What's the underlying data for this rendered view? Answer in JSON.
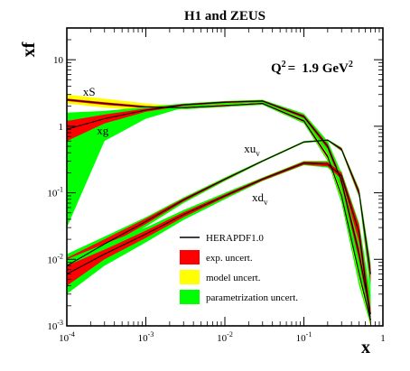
{
  "chart_data": {
    "type": "line",
    "title": "H1 and ZEUS",
    "annotation": {
      "q2_label": "Q",
      "q2_exp": "2",
      "q2_eq": "=",
      "q2_value": "1.9 GeV",
      "q2_unit_exp": "2"
    },
    "xlabel": "x",
    "ylabel": "xf",
    "xscale": "log",
    "yscale": "log",
    "xlim": [
      0.0001,
      1
    ],
    "ylim": [
      0.001,
      30
    ],
    "x_ticks": [
      {
        "value": 0.0001,
        "base": "10",
        "exp": "-4"
      },
      {
        "value": 0.001,
        "base": "10",
        "exp": "-3"
      },
      {
        "value": 0.01,
        "base": "10",
        "exp": "-2"
      },
      {
        "value": 0.1,
        "base": "10",
        "exp": "-1"
      },
      {
        "value": 1,
        "base": "1",
        "exp": ""
      }
    ],
    "y_ticks": [
      {
        "value": 0.001,
        "base": "10",
        "exp": "-3"
      },
      {
        "value": 0.01,
        "base": "10",
        "exp": "-2"
      },
      {
        "value": 0.1,
        "base": "10",
        "exp": "-1"
      },
      {
        "value": 1,
        "base": "1",
        "exp": ""
      },
      {
        "value": 10,
        "base": "10",
        "exp": ""
      }
    ],
    "legend": {
      "placement": "lower-center",
      "entries": [
        {
          "label": "HERAPDF1.0",
          "kind": "line",
          "color": "#000000"
        },
        {
          "label": "exp. uncert.",
          "kind": "box",
          "color": "#ff0000"
        },
        {
          "label": "model uncert.",
          "kind": "box",
          "color": "#ffff00"
        },
        {
          "label": "parametrization uncert.",
          "kind": "box",
          "color": "#00ff00"
        }
      ]
    },
    "colors": {
      "central": "#000000",
      "exp": "#ff0000",
      "model": "#ffff00",
      "param": "#00ff00"
    },
    "x": [
      0.0001,
      0.0003,
      0.001,
      0.003,
      0.01,
      0.03,
      0.1,
      0.2,
      0.3,
      0.5,
      0.7
    ],
    "series": [
      {
        "name": "xS",
        "label_main": "xS",
        "label_sub": "",
        "label_at": {
          "x": 0.00016,
          "y": 2.9
        },
        "y": [
          2.5,
          2.2,
          1.95,
          1.9,
          2.05,
          2.2,
          1.2,
          0.35,
          0.09,
          0.006,
          0.0012
        ],
        "param_lo": [
          2.3,
          2.0,
          1.8,
          1.8,
          1.95,
          2.1,
          1.1,
          0.3,
          0.07,
          0.004,
          0.001
        ],
        "param_hi": [
          2.8,
          2.4,
          2.1,
          2.0,
          2.15,
          2.3,
          1.3,
          0.42,
          0.12,
          0.009,
          0.002
        ],
        "model_lo": [
          2.2,
          1.9,
          1.75,
          1.85,
          2.0,
          2.15,
          1.15,
          0.32,
          0.08,
          0.005,
          0.001
        ],
        "model_hi": [
          3.0,
          2.6,
          2.2,
          2.0,
          2.12,
          2.26,
          1.25,
          0.38,
          0.1,
          0.007,
          0.0015
        ],
        "exp_lo": [
          2.4,
          2.1,
          1.88,
          1.86,
          2.0,
          2.16,
          1.16,
          0.33,
          0.085,
          0.0055,
          0.0011
        ],
        "exp_hi": [
          2.6,
          2.3,
          2.02,
          1.94,
          2.1,
          2.24,
          1.24,
          0.37,
          0.095,
          0.0065,
          0.0013
        ]
      },
      {
        "name": "xg",
        "label_main": "xg",
        "label_sub": "",
        "label_at": {
          "x": 0.00024,
          "y": 0.75
        },
        "y": [
          0.9,
          1.3,
          1.75,
          2.1,
          2.3,
          2.4,
          1.4,
          0.5,
          0.15,
          0.012,
          0.0015
        ],
        "param_lo": [
          0.03,
          0.6,
          1.3,
          1.9,
          2.15,
          2.25,
          1.25,
          0.42,
          0.1,
          0.006,
          0.001
        ],
        "param_hi": [
          1.6,
          1.7,
          1.95,
          2.2,
          2.4,
          2.5,
          1.55,
          0.6,
          0.2,
          0.02,
          0.003
        ],
        "model_lo": [
          0.75,
          1.2,
          1.7,
          2.05,
          2.25,
          2.35,
          1.35,
          0.47,
          0.13,
          0.01,
          0.0013
        ],
        "model_hi": [
          1.0,
          1.38,
          1.8,
          2.12,
          2.33,
          2.43,
          1.45,
          0.53,
          0.17,
          0.014,
          0.0018
        ],
        "exp_lo": [
          0.6,
          1.1,
          1.65,
          2.03,
          2.24,
          2.34,
          1.33,
          0.46,
          0.13,
          0.0095,
          0.0012
        ],
        "exp_hi": [
          1.2,
          1.5,
          1.85,
          2.15,
          2.36,
          2.46,
          1.47,
          0.54,
          0.17,
          0.0145,
          0.0019
        ]
      },
      {
        "name": "xu_v",
        "label_main": "xu",
        "label_sub": "v",
        "label_at": {
          "x": 0.0175,
          "y": 0.4
        },
        "y": [
          0.008,
          0.017,
          0.037,
          0.078,
          0.16,
          0.3,
          0.58,
          0.62,
          0.45,
          0.1,
          0.006
        ],
        "param_lo": [
          0.005,
          0.013,
          0.031,
          0.07,
          0.15,
          0.29,
          0.56,
          0.6,
          0.42,
          0.085,
          0.003
        ],
        "param_hi": [
          0.012,
          0.022,
          0.043,
          0.085,
          0.17,
          0.31,
          0.6,
          0.64,
          0.48,
          0.115,
          0.009
        ],
        "model_lo": [
          0.007,
          0.016,
          0.035,
          0.075,
          0.155,
          0.295,
          0.57,
          0.61,
          0.44,
          0.095,
          0.005
        ],
        "model_hi": [
          0.009,
          0.018,
          0.039,
          0.081,
          0.165,
          0.305,
          0.59,
          0.63,
          0.46,
          0.105,
          0.007
        ],
        "exp_lo": [
          0.006,
          0.015,
          0.034,
          0.074,
          0.155,
          0.295,
          0.57,
          0.61,
          0.43,
          0.09,
          0.0045
        ],
        "exp_hi": [
          0.0105,
          0.02,
          0.041,
          0.082,
          0.165,
          0.305,
          0.59,
          0.63,
          0.47,
          0.11,
          0.0075
        ]
      },
      {
        "name": "xd_v",
        "label_main": "xd",
        "label_sub": "v",
        "label_at": {
          "x": 0.022,
          "y": 0.075
        },
        "y": [
          0.006,
          0.012,
          0.024,
          0.047,
          0.09,
          0.16,
          0.28,
          0.27,
          0.18,
          0.025,
          0.0012
        ],
        "param_lo": [
          0.003,
          0.008,
          0.018,
          0.039,
          0.08,
          0.15,
          0.26,
          0.24,
          0.15,
          0.015,
          0.0005
        ],
        "param_hi": [
          0.01,
          0.017,
          0.03,
          0.055,
          0.1,
          0.17,
          0.3,
          0.3,
          0.21,
          0.035,
          0.003
        ],
        "model_lo": [
          0.005,
          0.011,
          0.022,
          0.045,
          0.087,
          0.156,
          0.27,
          0.26,
          0.17,
          0.022,
          0.001
        ],
        "model_hi": [
          0.007,
          0.013,
          0.026,
          0.049,
          0.093,
          0.164,
          0.29,
          0.28,
          0.19,
          0.028,
          0.0014
        ],
        "exp_lo": [
          0.004,
          0.01,
          0.021,
          0.043,
          0.085,
          0.153,
          0.265,
          0.25,
          0.16,
          0.018,
          0.0008
        ],
        "exp_hi": [
          0.008,
          0.014,
          0.027,
          0.051,
          0.095,
          0.167,
          0.295,
          0.29,
          0.2,
          0.032,
          0.0018
        ]
      }
    ]
  }
}
